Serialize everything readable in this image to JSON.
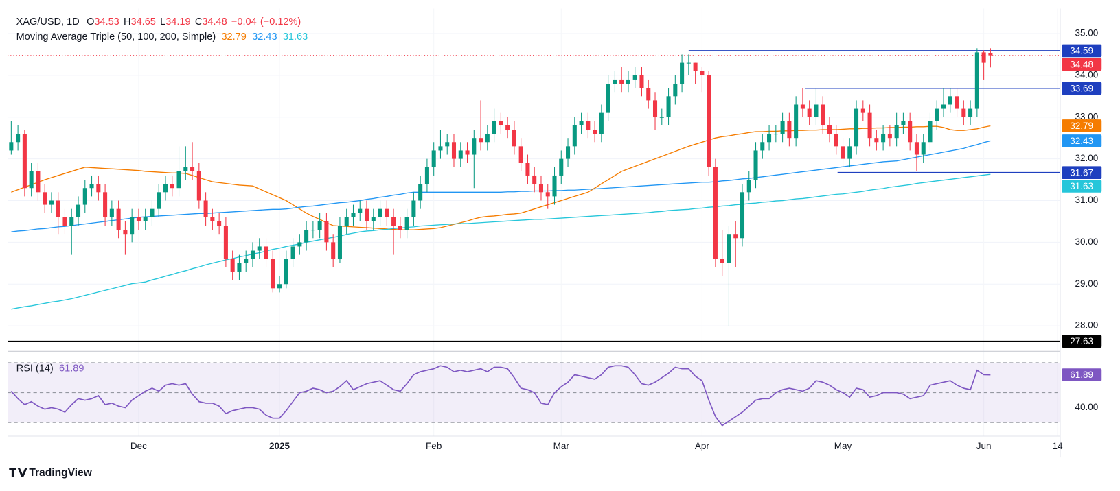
{
  "chart_data": {
    "type": "candlestick",
    "title": "XAG/USD, 1D",
    "ohlc_letters": [
      "O",
      "H",
      "L",
      "C"
    ],
    "change": {
      "value": -0.04,
      "label": "−0.04"
    },
    "change_pct": {
      "value": -0.12,
      "label": "(−0.12%)"
    },
    "ma_title": "Moving Average Triple (50, 100, 200, Simple)",
    "up_color": "#089981",
    "down_color": "#f23645",
    "ylim": [
      27.44,
      35.6
    ],
    "yticks": [
      {
        "value": 28,
        "label": "28.00"
      },
      {
        "value": 29,
        "label": "29.00"
      },
      {
        "value": 30,
        "label": "30.00"
      },
      {
        "value": 31,
        "label": "31.00"
      },
      {
        "value": 32,
        "label": "32.00"
      },
      {
        "value": 33,
        "label": "33.00"
      },
      {
        "value": 34,
        "label": "34.00"
      },
      {
        "value": 35,
        "label": "35.00"
      }
    ],
    "xlim": [
      -0.53,
      156.4
    ],
    "xticks": [
      {
        "value": 19,
        "label": "Dec"
      },
      {
        "value": 40,
        "label": "2025",
        "bold": true
      },
      {
        "value": 63,
        "label": "Feb"
      },
      {
        "value": 82,
        "label": "Mar"
      },
      {
        "value": 103,
        "label": "Apr"
      },
      {
        "value": 124,
        "label": "May"
      },
      {
        "value": 145,
        "label": "Jun"
      },
      {
        "value": 156,
        "label": "14"
      }
    ],
    "grid": true,
    "open": [
      32.2,
      32.4,
      32.6,
      31.3,
      31.7,
      31.2,
      30.9,
      31.0,
      30.6,
      30.4,
      30.6,
      30.9,
      31.3,
      31.4,
      31.2,
      30.6,
      30.8,
      30.3,
      30.2,
      30.6,
      30.5,
      30.6,
      30.8,
      31.2,
      31.4,
      31.3,
      31.7,
      31.8,
      31.7,
      31.0,
      30.6,
      30.5,
      30.4,
      29.6,
      29.3,
      29.5,
      29.6,
      29.8,
      29.9,
      29.6,
      28.9,
      29.0,
      29.6,
      29.9,
      30.0,
      30.3,
      30.3,
      30.5,
      30.0,
      29.6,
      30.4,
      30.6,
      30.7,
      30.8,
      30.5,
      30.6,
      30.8,
      30.6,
      30.4,
      30.3,
      30.6,
      31.0,
      31.4,
      31.8,
      32.2,
      32.3,
      32.4,
      32.0,
      32.2,
      32.1,
      32.5,
      32.4,
      32.6,
      32.9,
      32.8,
      32.7,
      32.3,
      31.9,
      31.6,
      31.4,
      31.2,
      31.1,
      31.6,
      32.0,
      32.3,
      32.8,
      32.9,
      32.7,
      32.6,
      33.1,
      33.8,
      33.9,
      33.8,
      33.9,
      34.0,
      33.7,
      33.4,
      33.0,
      33.0,
      33.5,
      33.8,
      34.3,
      34.3,
      34.1,
      34.0,
      31.8,
      29.6,
      29.5,
      30.2,
      30.1,
      31.2,
      31.5,
      32.2,
      32.4,
      32.6,
      32.6,
      32.9,
      32.5,
      33.3,
      33.2,
      33.0,
      33.3,
      32.8,
      32.6,
      32.3,
      32.0,
      32.3,
      33.2,
      33.1,
      32.5,
      32.4,
      32.6,
      32.5,
      32.8,
      32.9,
      32.4,
      32.1,
      32.4,
      32.9,
      33.2,
      33.3,
      33.5,
      33.2,
      33.0,
      33.2,
      34.55,
      34.53
    ],
    "high": [
      32.9,
      32.8,
      32.7,
      31.9,
      31.9,
      31.4,
      31.2,
      31.2,
      30.8,
      30.8,
      31.1,
      31.5,
      31.6,
      31.6,
      31.4,
      31.0,
      31.0,
      30.5,
      30.8,
      30.8,
      30.8,
      31.0,
      31.4,
      31.6,
      31.6,
      32.3,
      32.3,
      32.4,
      31.9,
      31.2,
      30.8,
      30.7,
      30.6,
      29.8,
      29.7,
      29.8,
      30.0,
      30.1,
      30.1,
      29.8,
      29.2,
      29.8,
      30.1,
      30.2,
      30.5,
      30.5,
      30.7,
      30.7,
      30.2,
      30.6,
      30.8,
      30.9,
      31.0,
      31.0,
      30.8,
      31.0,
      31.0,
      30.8,
      30.6,
      30.8,
      31.2,
      31.6,
      32.0,
      32.4,
      32.7,
      32.6,
      32.6,
      32.4,
      32.4,
      32.7,
      33.4,
      32.8,
      33.2,
      33.1,
      33.0,
      32.9,
      32.5,
      32.1,
      31.8,
      31.6,
      31.4,
      31.8,
      32.2,
      32.5,
      33.0,
      33.1,
      33.1,
      32.9,
      33.3,
      34.0,
      34.1,
      34.2,
      34.1,
      34.2,
      34.2,
      33.9,
      33.6,
      33.2,
      33.7,
      34.0,
      34.5,
      34.5,
      34.3,
      34.2,
      34.1,
      32.0,
      30.3,
      30.4,
      30.5,
      31.4,
      31.7,
      32.4,
      32.6,
      32.8,
      32.8,
      33.1,
      33.1,
      33.5,
      33.7,
      33.4,
      33.7,
      33.5,
      33.0,
      32.8,
      32.5,
      32.5,
      33.4,
      33.4,
      33.3,
      32.7,
      32.8,
      32.8,
      33.1,
      33.1,
      33.1,
      32.6,
      32.6,
      33.1,
      33.4,
      33.7,
      33.7,
      33.7,
      33.4,
      33.4,
      34.65,
      34.6,
      34.65
    ],
    "low": [
      32.1,
      32.2,
      31.1,
      31.1,
      31.0,
      30.7,
      30.7,
      30.2,
      30.2,
      29.7,
      30.4,
      30.7,
      31.1,
      31.0,
      30.4,
      30.4,
      30.1,
      29.7,
      30.0,
      30.3,
      30.3,
      30.4,
      30.6,
      31.0,
      31.1,
      31.1,
      31.5,
      31.5,
      30.8,
      30.4,
      30.3,
      30.2,
      29.4,
      29.1,
      29.1,
      29.3,
      29.4,
      29.6,
      29.4,
      28.8,
      28.8,
      28.9,
      29.4,
      29.7,
      29.8,
      30.1,
      30.1,
      29.8,
      29.4,
      29.5,
      30.2,
      30.4,
      30.5,
      30.3,
      30.3,
      30.4,
      30.4,
      29.7,
      30.1,
      30.1,
      30.4,
      30.8,
      31.2,
      31.6,
      32.0,
      32.1,
      31.8,
      31.8,
      31.9,
      31.3,
      32.2,
      32.2,
      32.4,
      32.6,
      32.5,
      32.1,
      31.7,
      31.4,
      31.2,
      31.0,
      30.8,
      30.9,
      31.4,
      31.8,
      32.1,
      32.6,
      32.5,
      32.4,
      32.4,
      32.9,
      33.6,
      33.6,
      33.6,
      33.7,
      33.5,
      33.2,
      32.7,
      32.8,
      32.8,
      33.3,
      33.6,
      34.0,
      33.8,
      33.6,
      31.6,
      29.4,
      29.2,
      28.0,
      29.4,
      29.9,
      31.0,
      31.3,
      32.0,
      32.2,
      32.4,
      32.4,
      32.3,
      32.3,
      33.0,
      32.8,
      32.8,
      32.6,
      32.4,
      32.1,
      31.8,
      31.8,
      32.1,
      32.9,
      32.3,
      32.2,
      32.2,
      32.3,
      32.3,
      32.6,
      32.2,
      31.7,
      31.9,
      32.2,
      32.7,
      33.0,
      33.1,
      33.0,
      32.8,
      32.8,
      33.0,
      33.9,
      34.19
    ],
    "close": [
      32.4,
      32.6,
      31.3,
      31.7,
      31.2,
      30.9,
      31.0,
      30.6,
      30.4,
      30.6,
      30.9,
      31.3,
      31.4,
      31.2,
      30.6,
      30.8,
      30.3,
      30.2,
      30.6,
      30.5,
      30.6,
      30.8,
      31.2,
      31.4,
      31.3,
      31.7,
      31.8,
      31.7,
      31.0,
      30.6,
      30.5,
      30.4,
      29.6,
      29.3,
      29.5,
      29.6,
      29.8,
      29.9,
      29.6,
      28.9,
      29.0,
      29.6,
      29.9,
      30.0,
      30.3,
      30.3,
      30.5,
      30.0,
      29.6,
      30.4,
      30.6,
      30.7,
      30.8,
      30.5,
      30.6,
      30.8,
      30.6,
      30.4,
      30.3,
      30.6,
      31.0,
      31.4,
      31.8,
      32.2,
      32.3,
      32.4,
      32.0,
      32.2,
      32.1,
      32.5,
      32.4,
      32.6,
      32.9,
      32.8,
      32.7,
      32.3,
      31.9,
      31.6,
      31.4,
      31.2,
      31.1,
      31.6,
      32.0,
      32.3,
      32.8,
      32.9,
      32.7,
      32.6,
      33.1,
      33.8,
      33.9,
      33.8,
      33.9,
      34.0,
      33.7,
      33.4,
      33.0,
      33.0,
      33.5,
      33.8,
      34.3,
      34.3,
      34.1,
      34.0,
      31.8,
      29.6,
      29.5,
      30.2,
      30.1,
      31.2,
      31.5,
      32.2,
      32.4,
      32.6,
      32.6,
      32.9,
      32.5,
      33.3,
      33.2,
      33.0,
      33.3,
      32.8,
      32.6,
      32.3,
      32.0,
      32.3,
      33.2,
      33.1,
      32.5,
      32.4,
      32.6,
      32.5,
      32.8,
      32.9,
      32.4,
      32.1,
      32.4,
      32.9,
      33.2,
      33.3,
      33.5,
      33.2,
      33.0,
      33.2,
      34.55,
      34.3,
      34.48
    ],
    "series": [
      {
        "name": "50",
        "color": "#f57c00",
        "values": [
          31.2,
          31.26,
          31.32,
          31.38,
          31.44,
          31.5,
          31.55,
          31.6,
          31.65,
          31.7,
          31.75,
          31.8,
          31.79,
          31.78,
          31.77,
          31.76,
          31.75,
          31.74,
          31.73,
          31.72,
          31.7,
          31.69,
          31.68,
          31.67,
          31.66,
          31.66,
          31.65,
          31.6,
          31.55,
          31.5,
          31.45,
          31.43,
          31.41,
          31.39,
          31.37,
          31.36,
          31.35,
          31.28,
          31.21,
          31.14,
          31.07,
          31.0,
          30.9,
          30.8,
          30.7,
          30.62,
          30.55,
          30.47,
          30.4,
          30.39,
          30.38,
          30.37,
          30.36,
          30.35,
          30.34,
          30.33,
          30.32,
          30.31,
          30.3,
          30.3,
          30.3,
          30.31,
          30.32,
          30.33,
          30.35,
          30.39,
          30.43,
          30.47,
          30.51,
          30.56,
          30.6,
          30.62,
          30.63,
          30.65,
          30.67,
          30.68,
          30.7,
          30.75,
          30.8,
          30.85,
          30.9,
          30.95,
          31.0,
          31.05,
          31.1,
          31.15,
          31.2,
          31.3,
          31.4,
          31.5,
          31.6,
          31.7,
          31.76,
          31.82,
          31.88,
          31.94,
          32.0,
          32.06,
          32.12,
          32.18,
          32.24,
          32.3,
          32.35,
          32.4,
          32.45,
          32.5,
          32.53,
          32.55,
          32.58,
          32.6,
          32.63,
          32.65,
          32.65,
          32.66,
          32.66,
          32.67,
          32.67,
          32.68,
          32.68,
          32.69,
          32.69,
          32.7,
          32.7,
          32.7,
          32.71,
          32.72,
          32.72,
          32.73,
          32.73,
          32.74,
          32.74,
          32.75,
          32.75,
          32.76,
          32.76,
          32.77,
          32.77,
          32.78,
          32.78,
          32.75,
          32.7,
          32.68,
          32.68,
          32.7,
          32.72,
          32.76,
          32.79
        ]
      },
      {
        "name": "100",
        "color": "#2196f3",
        "values": [
          30.25,
          30.27,
          30.28,
          30.3,
          30.32,
          30.33,
          30.35,
          30.37,
          30.38,
          30.4,
          30.42,
          30.44,
          30.46,
          30.48,
          30.5,
          30.52,
          30.54,
          30.56,
          30.58,
          30.6,
          30.61,
          30.62,
          30.63,
          30.64,
          30.65,
          30.66,
          30.67,
          30.68,
          30.69,
          30.69,
          30.7,
          30.71,
          30.72,
          30.73,
          30.74,
          30.75,
          30.76,
          30.77,
          30.78,
          30.79,
          30.79,
          30.8,
          30.82,
          30.84,
          30.86,
          30.87,
          30.89,
          30.91,
          30.93,
          30.95,
          30.96,
          30.98,
          31.0,
          31.03,
          31.05,
          31.08,
          31.1,
          31.13,
          31.15,
          31.18,
          31.2,
          31.2,
          31.2,
          31.2,
          31.2,
          31.2,
          31.2,
          31.2,
          31.2,
          31.2,
          31.2,
          31.2,
          31.2,
          31.2,
          31.21,
          31.21,
          31.22,
          31.22,
          31.23,
          31.23,
          31.23,
          31.24,
          31.24,
          31.25,
          31.25,
          31.26,
          31.27,
          31.28,
          31.29,
          31.3,
          31.31,
          31.32,
          31.33,
          31.34,
          31.35,
          31.36,
          31.37,
          31.38,
          31.39,
          31.4,
          31.41,
          31.42,
          31.43,
          31.44,
          31.44,
          31.45,
          31.47,
          31.48,
          31.5,
          31.52,
          31.53,
          31.55,
          31.57,
          31.59,
          31.61,
          31.63,
          31.65,
          31.67,
          31.69,
          31.71,
          31.73,
          31.75,
          31.77,
          31.79,
          31.81,
          31.83,
          31.85,
          31.87,
          31.89,
          31.91,
          31.93,
          31.94,
          31.95,
          31.98,
          32.01,
          32.04,
          32.07,
          32.1,
          32.13,
          32.16,
          32.19,
          32.22,
          32.25,
          32.3,
          32.34,
          32.39,
          32.43
        ]
      },
      {
        "name": "200",
        "color": "#26c6da",
        "values": [
          28.4,
          28.43,
          28.46,
          28.48,
          28.51,
          28.54,
          28.57,
          28.59,
          28.62,
          28.65,
          28.69,
          28.73,
          28.77,
          28.81,
          28.85,
          28.89,
          28.93,
          28.97,
          29.01,
          29.03,
          29.05,
          29.1,
          29.14,
          29.19,
          29.23,
          29.28,
          29.32,
          29.37,
          29.41,
          29.46,
          29.5,
          29.54,
          29.58,
          29.61,
          29.65,
          29.68,
          29.72,
          29.75,
          29.79,
          29.83,
          29.86,
          29.9,
          29.93,
          29.96,
          30.0,
          30.03,
          30.06,
          30.09,
          30.12,
          30.15,
          30.19,
          30.22,
          30.25,
          30.27,
          30.28,
          30.3,
          30.31,
          30.33,
          30.34,
          30.36,
          30.37,
          30.39,
          30.4,
          30.41,
          30.42,
          30.43,
          30.44,
          30.45,
          30.45,
          30.46,
          30.47,
          30.48,
          30.49,
          30.5,
          30.51,
          30.52,
          30.53,
          30.54,
          30.55,
          30.55,
          30.56,
          30.57,
          30.58,
          30.59,
          30.6,
          30.61,
          30.62,
          30.63,
          30.64,
          30.65,
          30.66,
          30.67,
          30.68,
          30.69,
          30.7,
          30.71,
          30.73,
          30.74,
          30.76,
          30.77,
          30.78,
          30.79,
          30.81,
          30.82,
          30.84,
          30.85,
          30.87,
          30.88,
          30.9,
          30.91,
          30.93,
          30.94,
          30.96,
          30.97,
          30.99,
          31.0,
          31.02,
          31.04,
          31.05,
          31.07,
          31.09,
          31.11,
          31.13,
          31.15,
          31.16,
          31.18,
          31.2,
          31.22,
          31.25,
          31.27,
          31.29,
          31.32,
          31.34,
          31.36,
          31.38,
          31.41,
          31.43,
          31.45,
          31.47,
          31.49,
          31.51,
          31.53,
          31.55,
          31.57,
          31.59,
          31.61,
          31.63
        ]
      }
    ],
    "levels": [
      {
        "value": 34.59,
        "from": 101,
        "color": "#1e3fbf"
      },
      {
        "value": 33.69,
        "from": 118.4,
        "color": "#1e3fbf"
      },
      {
        "value": 31.67,
        "from": 123.2,
        "color": "#1e3fbf"
      },
      {
        "value": 27.63,
        "from": -0.53,
        "color": "#000000"
      }
    ],
    "rsi": {
      "name": "RSI (14)",
      "color": "#7e57c2",
      "ylim": [
        20.95,
        75.7
      ],
      "yticks": [
        {
          "value": 40,
          "label": "40.00"
        }
      ],
      "bands": [
        70,
        50,
        30
      ],
      "values": [
        51,
        46,
        42,
        44,
        41,
        39,
        40,
        39,
        37,
        42,
        46,
        45,
        46,
        48,
        42,
        43,
        41,
        40,
        45,
        48,
        51,
        53,
        51,
        55,
        56,
        55,
        56,
        49,
        44,
        43,
        43,
        41,
        36,
        38,
        39,
        40,
        40,
        39,
        35,
        33,
        33,
        38,
        44,
        50,
        51,
        53,
        52,
        50,
        51,
        54,
        58,
        52,
        54,
        56,
        57,
        58,
        55,
        52,
        51,
        56,
        62,
        64,
        65,
        66,
        68,
        67,
        64,
        65,
        64,
        65,
        66,
        64,
        67,
        67,
        66,
        60,
        53,
        52,
        50,
        43,
        42,
        50,
        54,
        57,
        62,
        61,
        60,
        59,
        62,
        67,
        68,
        68,
        67,
        62,
        56,
        55,
        57,
        60,
        63,
        67,
        66,
        66,
        61,
        58,
        45,
        34,
        28,
        31,
        34,
        37,
        41,
        45,
        46,
        46,
        50,
        52,
        53,
        52,
        51,
        53,
        58,
        57,
        55,
        52,
        50,
        47,
        53,
        52,
        47,
        48,
        50,
        50,
        50,
        49,
        46,
        47,
        48,
        55,
        56,
        57,
        58,
        55,
        53,
        52,
        65,
        62,
        61.89
      ]
    },
    "branding": "TradingView"
  }
}
